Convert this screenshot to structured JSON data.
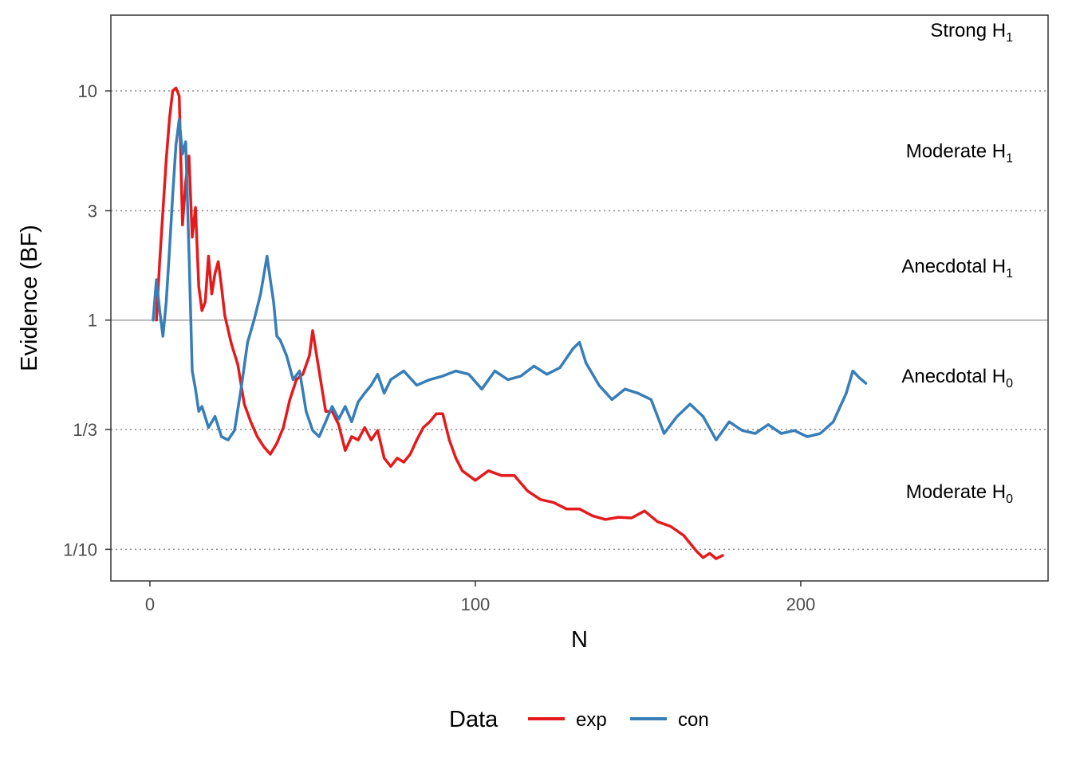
{
  "chart_data": {
    "type": "line",
    "xlabel": "N",
    "ylabel": "Evidence (BF)",
    "xlim": [
      -12,
      276
    ],
    "ylim": [
      0.0728,
      21.4
    ],
    "y_scale": "log",
    "x_ticks": [
      0,
      100,
      200
    ],
    "x_tick_labels": [
      "0",
      "100",
      "200"
    ],
    "y_ticks": [
      0.1,
      0.3333,
      1,
      3,
      10
    ],
    "y_tick_labels": [
      "1/10",
      "1/3",
      "1",
      "3",
      "10"
    ],
    "reference_line": 1,
    "gridlines": {
      "y": [
        0.1,
        0.3333,
        3,
        10
      ],
      "style": "dotted"
    },
    "regions": [
      {
        "base": "Strong H",
        "sub": "1",
        "y": 18.5
      },
      {
        "base": "Moderate H",
        "sub": "1",
        "y": 5.5
      },
      {
        "base": "Anecdotal H",
        "sub": "1",
        "y": 1.73
      },
      {
        "base": "Anecdotal H",
        "sub": "0",
        "y": 0.575
      },
      {
        "base": "Moderate H",
        "sub": "0",
        "y": 0.18
      }
    ],
    "legend": {
      "title": "Data",
      "position": "bottom"
    },
    "series": [
      {
        "name": "exp",
        "color": "#e41a1c",
        "x": [
          2,
          3,
          4,
          5,
          6,
          7,
          8,
          9,
          10,
          11,
          12,
          13,
          14,
          15,
          16,
          17,
          18,
          19,
          20,
          21,
          22,
          23,
          25,
          27,
          29,
          31,
          33,
          35,
          37,
          39,
          41,
          43,
          45,
          47,
          49,
          50,
          52,
          54,
          56,
          58,
          60,
          62,
          64,
          66,
          68,
          70,
          72,
          74,
          76,
          78,
          80,
          82,
          84,
          86,
          88,
          90,
          92,
          94,
          96,
          100,
          104,
          108,
          112,
          116,
          120,
          124,
          128,
          132,
          136,
          140,
          144,
          148,
          152,
          156,
          160,
          164,
          168,
          170,
          172,
          174,
          176
        ],
        "y": [
          1.0,
          1.8,
          3.0,
          5.0,
          7.5,
          10.0,
          10.3,
          9.5,
          2.6,
          4.0,
          5.2,
          2.3,
          3.1,
          1.4,
          1.1,
          1.2,
          1.9,
          1.3,
          1.6,
          1.8,
          1.4,
          1.05,
          0.79,
          0.64,
          0.43,
          0.36,
          0.31,
          0.28,
          0.26,
          0.29,
          0.34,
          0.45,
          0.55,
          0.58,
          0.7,
          0.9,
          0.6,
          0.4,
          0.4,
          0.35,
          0.27,
          0.31,
          0.3,
          0.34,
          0.3,
          0.33,
          0.25,
          0.23,
          0.25,
          0.24,
          0.26,
          0.3,
          0.34,
          0.36,
          0.39,
          0.39,
          0.3,
          0.25,
          0.22,
          0.2,
          0.22,
          0.21,
          0.21,
          0.18,
          0.165,
          0.16,
          0.15,
          0.15,
          0.14,
          0.135,
          0.138,
          0.137,
          0.147,
          0.132,
          0.126,
          0.115,
          0.098,
          0.092,
          0.096,
          0.091,
          0.094
        ]
      },
      {
        "name": "con",
        "color": "#377eb8",
        "x": [
          1,
          2,
          3,
          4,
          5,
          6,
          7,
          8,
          9,
          10,
          11,
          12,
          13,
          14,
          15,
          16,
          18,
          20,
          22,
          24,
          26,
          28,
          30,
          32,
          34,
          36,
          37,
          38,
          39,
          40,
          42,
          44,
          46,
          48,
          50,
          52,
          54,
          56,
          58,
          60,
          62,
          64,
          66,
          68,
          70,
          72,
          74,
          78,
          82,
          86,
          90,
          94,
          98,
          102,
          106,
          110,
          114,
          118,
          122,
          126,
          130,
          132,
          134,
          138,
          142,
          146,
          150,
          154,
          158,
          162,
          166,
          170,
          174,
          178,
          182,
          186,
          190,
          194,
          198,
          202,
          206,
          210,
          214,
          216,
          218,
          220
        ],
        "y": [
          1.0,
          1.5,
          1.1,
          0.85,
          1.2,
          2.0,
          3.5,
          5.8,
          7.5,
          5.3,
          6.0,
          2.0,
          0.6,
          0.5,
          0.4,
          0.42,
          0.34,
          0.38,
          0.31,
          0.3,
          0.33,
          0.5,
          0.8,
          1.0,
          1.3,
          1.9,
          1.5,
          1.2,
          0.85,
          0.82,
          0.7,
          0.55,
          0.6,
          0.4,
          0.33,
          0.31,
          0.36,
          0.42,
          0.37,
          0.42,
          0.36,
          0.44,
          0.48,
          0.52,
          0.58,
          0.48,
          0.55,
          0.6,
          0.52,
          0.55,
          0.57,
          0.6,
          0.58,
          0.5,
          0.6,
          0.55,
          0.57,
          0.63,
          0.58,
          0.62,
          0.75,
          0.8,
          0.65,
          0.52,
          0.45,
          0.5,
          0.48,
          0.45,
          0.32,
          0.38,
          0.43,
          0.38,
          0.3,
          0.36,
          0.33,
          0.32,
          0.35,
          0.32,
          0.33,
          0.31,
          0.32,
          0.36,
          0.48,
          0.6,
          0.56,
          0.53
        ]
      }
    ]
  }
}
